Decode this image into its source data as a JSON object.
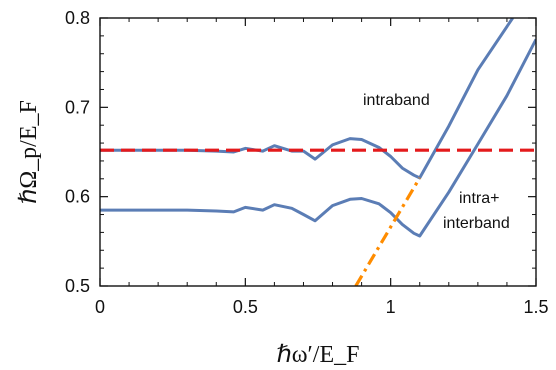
{
  "chart_data": {
    "type": "line",
    "xlabel": "ℏω′/E_F",
    "ylabel": "ℏΩ_p/E_F",
    "xlim": [
      0,
      1.5
    ],
    "ylim": [
      0.5,
      0.8
    ],
    "x_ticks": [
      "0",
      "0.5",
      "1",
      "1.5"
    ],
    "y_ticks": [
      "0.5",
      "0.6",
      "0.7",
      "0.8"
    ],
    "grid": false,
    "annotations": [
      {
        "text": "intraband"
      },
      {
        "text": "intra+"
      },
      {
        "text": "interband"
      }
    ],
    "series": [
      {
        "color": "#5b7db5",
        "style": "solid",
        "x": [
          0,
          0.3,
          0.4,
          0.46,
          0.5,
          0.56,
          0.6,
          0.66,
          0.7,
          0.74,
          0.8,
          0.86,
          0.9,
          0.96,
          1.0,
          1.04,
          1.08,
          1.1,
          1.2,
          1.3,
          1.42
        ],
        "y": [
          0.652,
          0.652,
          0.651,
          0.65,
          0.654,
          0.651,
          0.657,
          0.651,
          0.651,
          0.642,
          0.658,
          0.665,
          0.664,
          0.655,
          0.645,
          0.632,
          0.624,
          0.621,
          0.679,
          0.742,
          0.8
        ]
      },
      {
        "color": "#5b7db5",
        "style": "solid",
        "x": [
          0,
          0.3,
          0.4,
          0.46,
          0.5,
          0.56,
          0.6,
          0.66,
          0.7,
          0.74,
          0.8,
          0.86,
          0.9,
          0.96,
          1.0,
          1.04,
          1.08,
          1.1,
          1.2,
          1.3,
          1.4,
          1.5
        ],
        "y": [
          0.585,
          0.585,
          0.584,
          0.583,
          0.588,
          0.585,
          0.591,
          0.587,
          0.58,
          0.573,
          0.59,
          0.597,
          0.598,
          0.592,
          0.582,
          0.569,
          0.559,
          0.556,
          0.605,
          0.659,
          0.713,
          0.776
        ]
      },
      {
        "color": "#e41a1c",
        "style": "dashed",
        "x": [
          0,
          1.5
        ],
        "y": [
          0.652,
          0.652
        ]
      },
      {
        "color": "#ff8c00",
        "style": "dashdot",
        "x": [
          0.88,
          1.1
        ],
        "y": [
          0.5,
          0.621
        ]
      }
    ]
  }
}
